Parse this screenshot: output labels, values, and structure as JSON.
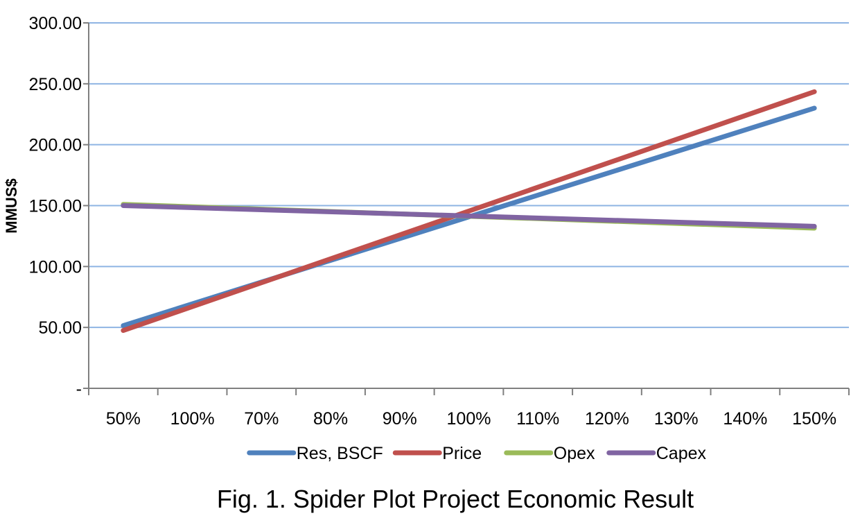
{
  "chart_data": {
    "type": "line",
    "categories": [
      "50%",
      "100%",
      "70%",
      "80%",
      "90%",
      "100%",
      "110%",
      "120%",
      "130%",
      "140%",
      "150%"
    ],
    "x": [
      50,
      150
    ],
    "series": [
      {
        "name": "Res, BSCF",
        "color": "#4F81BD",
        "values": [
          51.5,
          230
        ]
      },
      {
        "name": "Price",
        "color": "#C0504D",
        "values": [
          47.5,
          243.5
        ]
      },
      {
        "name": "Opex",
        "color": "#9BBB59",
        "values": [
          151,
          131.5
        ]
      },
      {
        "name": "Capex",
        "color": "#8064A2",
        "values": [
          150,
          133
        ]
      }
    ],
    "y_ticks": [
      "-",
      "50.00",
      "100.00",
      "150.00",
      "200.00",
      "250.00",
      "300.00"
    ],
    "ylim": [
      0,
      300
    ],
    "ylabel": "MMUS$",
    "xlabel": "",
    "grid": true,
    "legend_position": "bottom"
  },
  "caption": "Fig. 1. Spider Plot Project Economic Result"
}
